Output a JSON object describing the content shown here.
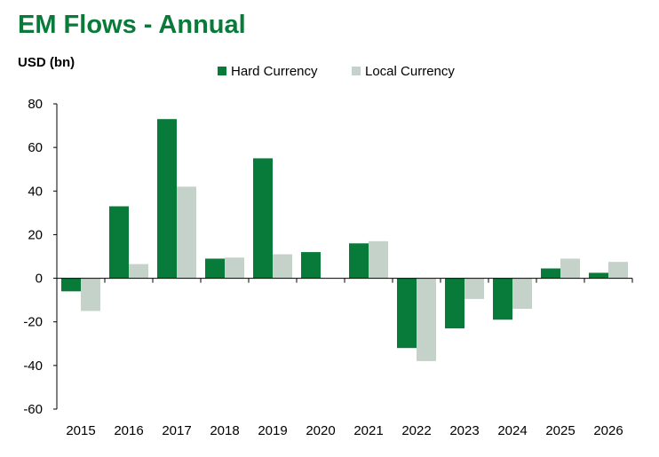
{
  "title": "EM Flows - Annual",
  "unit_label": "USD (bn)",
  "colors": {
    "hard": "#087a3a",
    "local": "#c5d2c9",
    "title": "#0a7a3a"
  },
  "chart_data": {
    "type": "bar",
    "categories": [
      "2015",
      "2016",
      "2017",
      "2018",
      "2019",
      "2020",
      "2021",
      "2022",
      "2023",
      "2024",
      "2025",
      "2026"
    ],
    "series": [
      {
        "name": "Hard Currency",
        "values": [
          -6,
          33,
          73,
          9,
          55,
          12,
          16,
          -32,
          -23,
          -19,
          4.5,
          2.5
        ]
      },
      {
        "name": "Local Currency",
        "values": [
          -15,
          6.5,
          42,
          9.5,
          11,
          0,
          17,
          -38,
          -9.5,
          -14,
          9,
          7.5
        ]
      }
    ],
    "ylim": [
      -60,
      80
    ],
    "yticks": [
      -60,
      -40,
      -20,
      0,
      20,
      40,
      60,
      80
    ],
    "legend": "top-center",
    "grid": false
  }
}
